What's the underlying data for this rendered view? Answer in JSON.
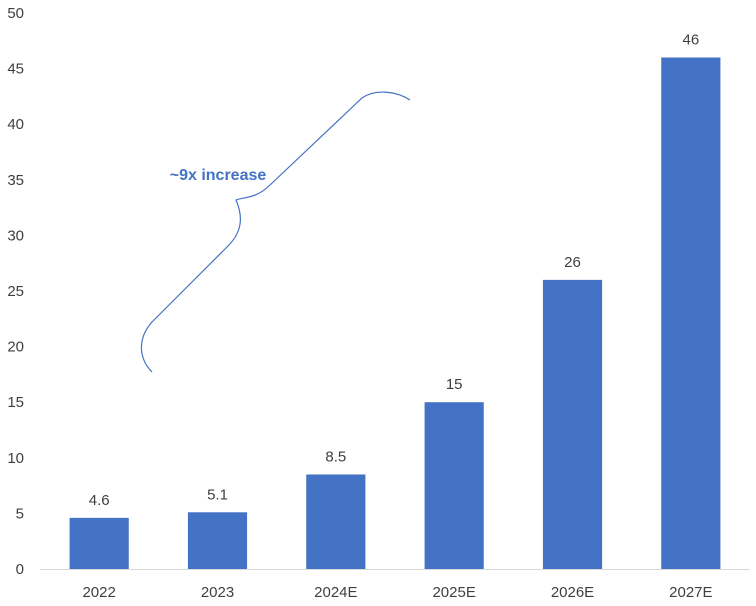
{
  "chart_data": {
    "type": "bar",
    "categories": [
      "2022",
      "2023",
      "2024E",
      "2025E",
      "2026E",
      "2027E"
    ],
    "values": [
      4.6,
      5.1,
      8.5,
      15,
      26,
      46
    ],
    "data_labels": [
      "4.6",
      "5.1",
      "8.5",
      "15",
      "26",
      "46"
    ],
    "ylim": [
      0,
      50
    ],
    "yticks": [
      0,
      5,
      10,
      15,
      20,
      25,
      30,
      35,
      40,
      45,
      50
    ],
    "grid": false,
    "legend": "none",
    "annotation": "~9x increase",
    "colors": {
      "bar": "#4472c4",
      "annotation": "#4472c4",
      "axis": "#d9d9d9",
      "text": "#3f3f3f"
    }
  }
}
